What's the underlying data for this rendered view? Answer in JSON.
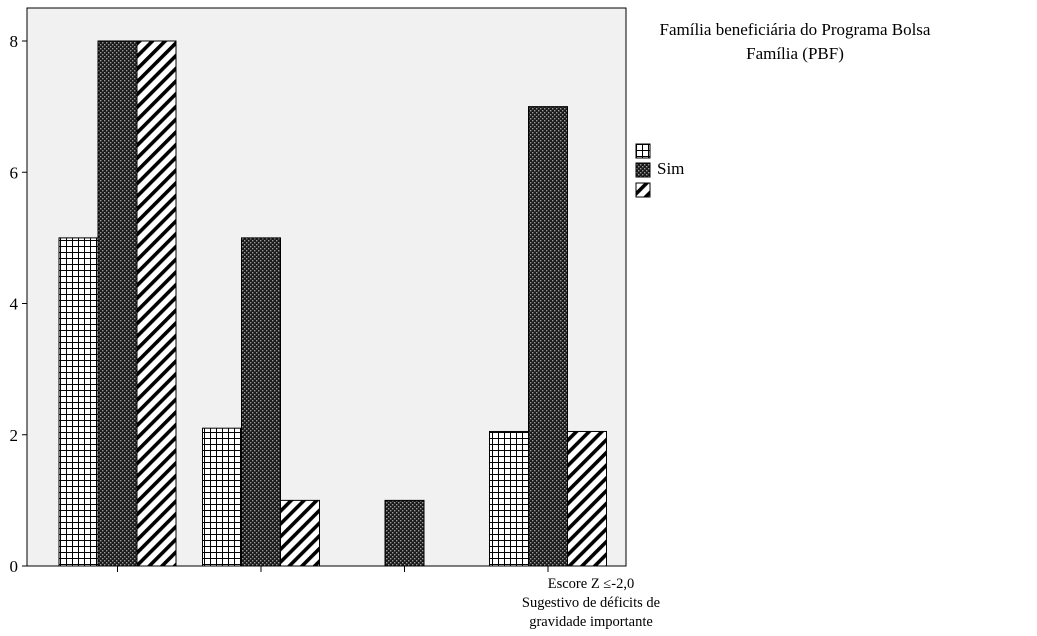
{
  "chart_data": {
    "type": "bar",
    "title": "",
    "xlabel": "",
    "ylabel": "",
    "ylim": [
      0,
      8
    ],
    "yticks": [
      0,
      2,
      4,
      6,
      8
    ],
    "grid": false,
    "legend_position": "right",
    "legend_title": "Família beneficiária do Programa Bolsa Família (PBF)",
    "categories": [
      "",
      "",
      "",
      "Escore Z ≤-2,0 Sugestivo de déficits de gravidade importante"
    ],
    "series": [
      {
        "name": "",
        "pattern": "grid",
        "values": [
          5,
          2.1,
          0,
          2.05
        ]
      },
      {
        "name": "Sim",
        "pattern": "dark-checker",
        "values": [
          8,
          5,
          1,
          7
        ]
      },
      {
        "name": "",
        "pattern": "diagonal-stripes",
        "values": [
          8,
          1,
          0,
          2.05
        ]
      }
    ],
    "colors": {
      "plot_background": "#f1f1f1",
      "bar_stroke": "#000000",
      "bar_fill": "#ffffff"
    }
  },
  "legend": {
    "title": "Família beneficiária do Programa Bolsa Família (PBF)",
    "items": [
      "",
      "Sim",
      ""
    ]
  },
  "x_annotation_lines": [
    "Escore Z ≤-2,0",
    "Sugestivo de déficits de",
    "gravidade importante"
  ]
}
